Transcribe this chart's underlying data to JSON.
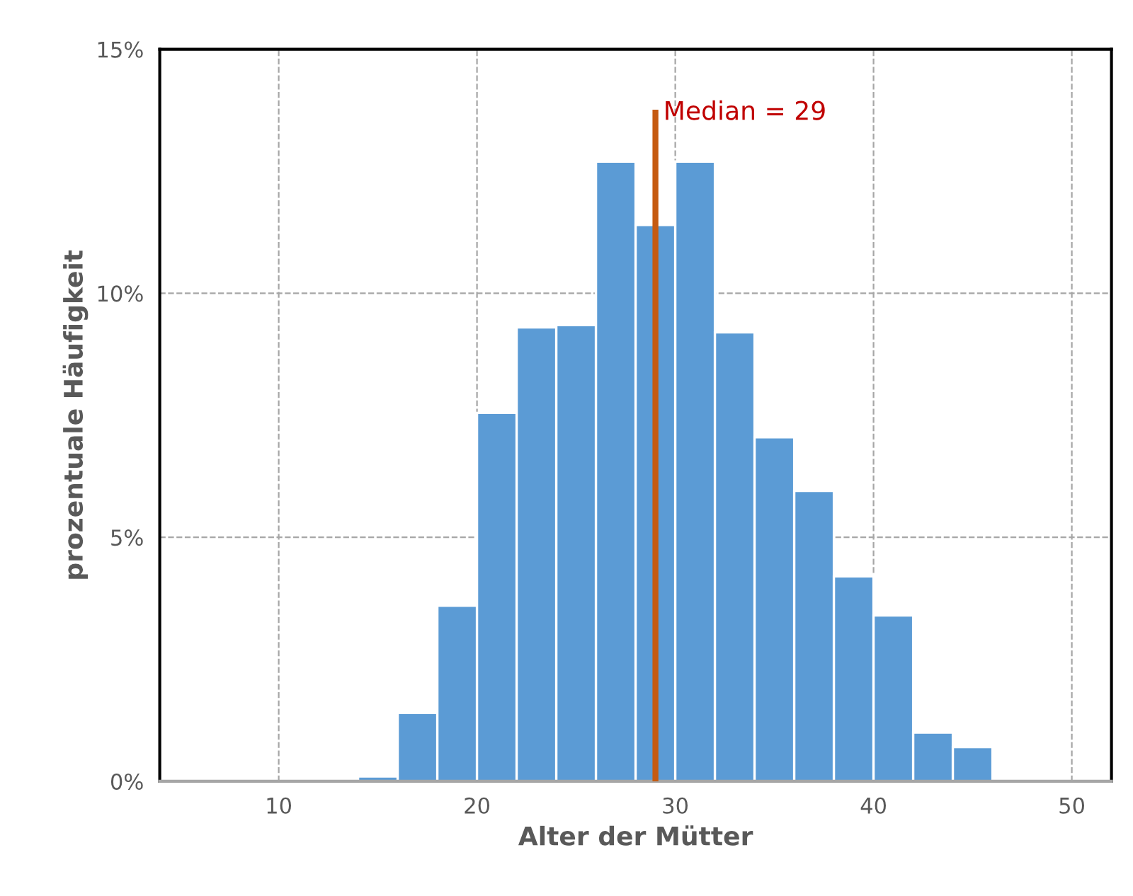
{
  "chart_data": {
    "type": "histogram",
    "xlabel": "Alter der Mütter",
    "ylabel": "prozentuale Häufigkeit",
    "bins": [
      14,
      16,
      18,
      20,
      22,
      24,
      26,
      28,
      30,
      32,
      34,
      36,
      38,
      40,
      42,
      44,
      46
    ],
    "values": [
      0.1,
      1.4,
      3.6,
      7.55,
      9.3,
      9.35,
      12.7,
      11.4,
      12.7,
      9.2,
      7.05,
      5.95,
      4.2,
      3.4,
      1.0,
      0.7
    ],
    "color": "#5b9bd5",
    "series": [
      {
        "type": "line",
        "x": [
          29,
          29
        ],
        "values": [
          0,
          13.7
        ],
        "color": "#c55a11"
      }
    ],
    "annotations": [
      {
        "text": "Median = 29",
        "x": 29,
        "y": 13.7
      }
    ],
    "xlim": [
      4,
      52
    ],
    "xticks": [
      10,
      20,
      30,
      40,
      50
    ],
    "ylim": [
      0,
      15
    ],
    "yticks": [
      {
        "value": 0,
        "label": "0%"
      },
      {
        "value": 5,
        "label": "5%"
      },
      {
        "value": 10,
        "label": "10%"
      },
      {
        "value": 15,
        "label": "15%"
      }
    ],
    "grid": true,
    "line_style": "solid"
  }
}
